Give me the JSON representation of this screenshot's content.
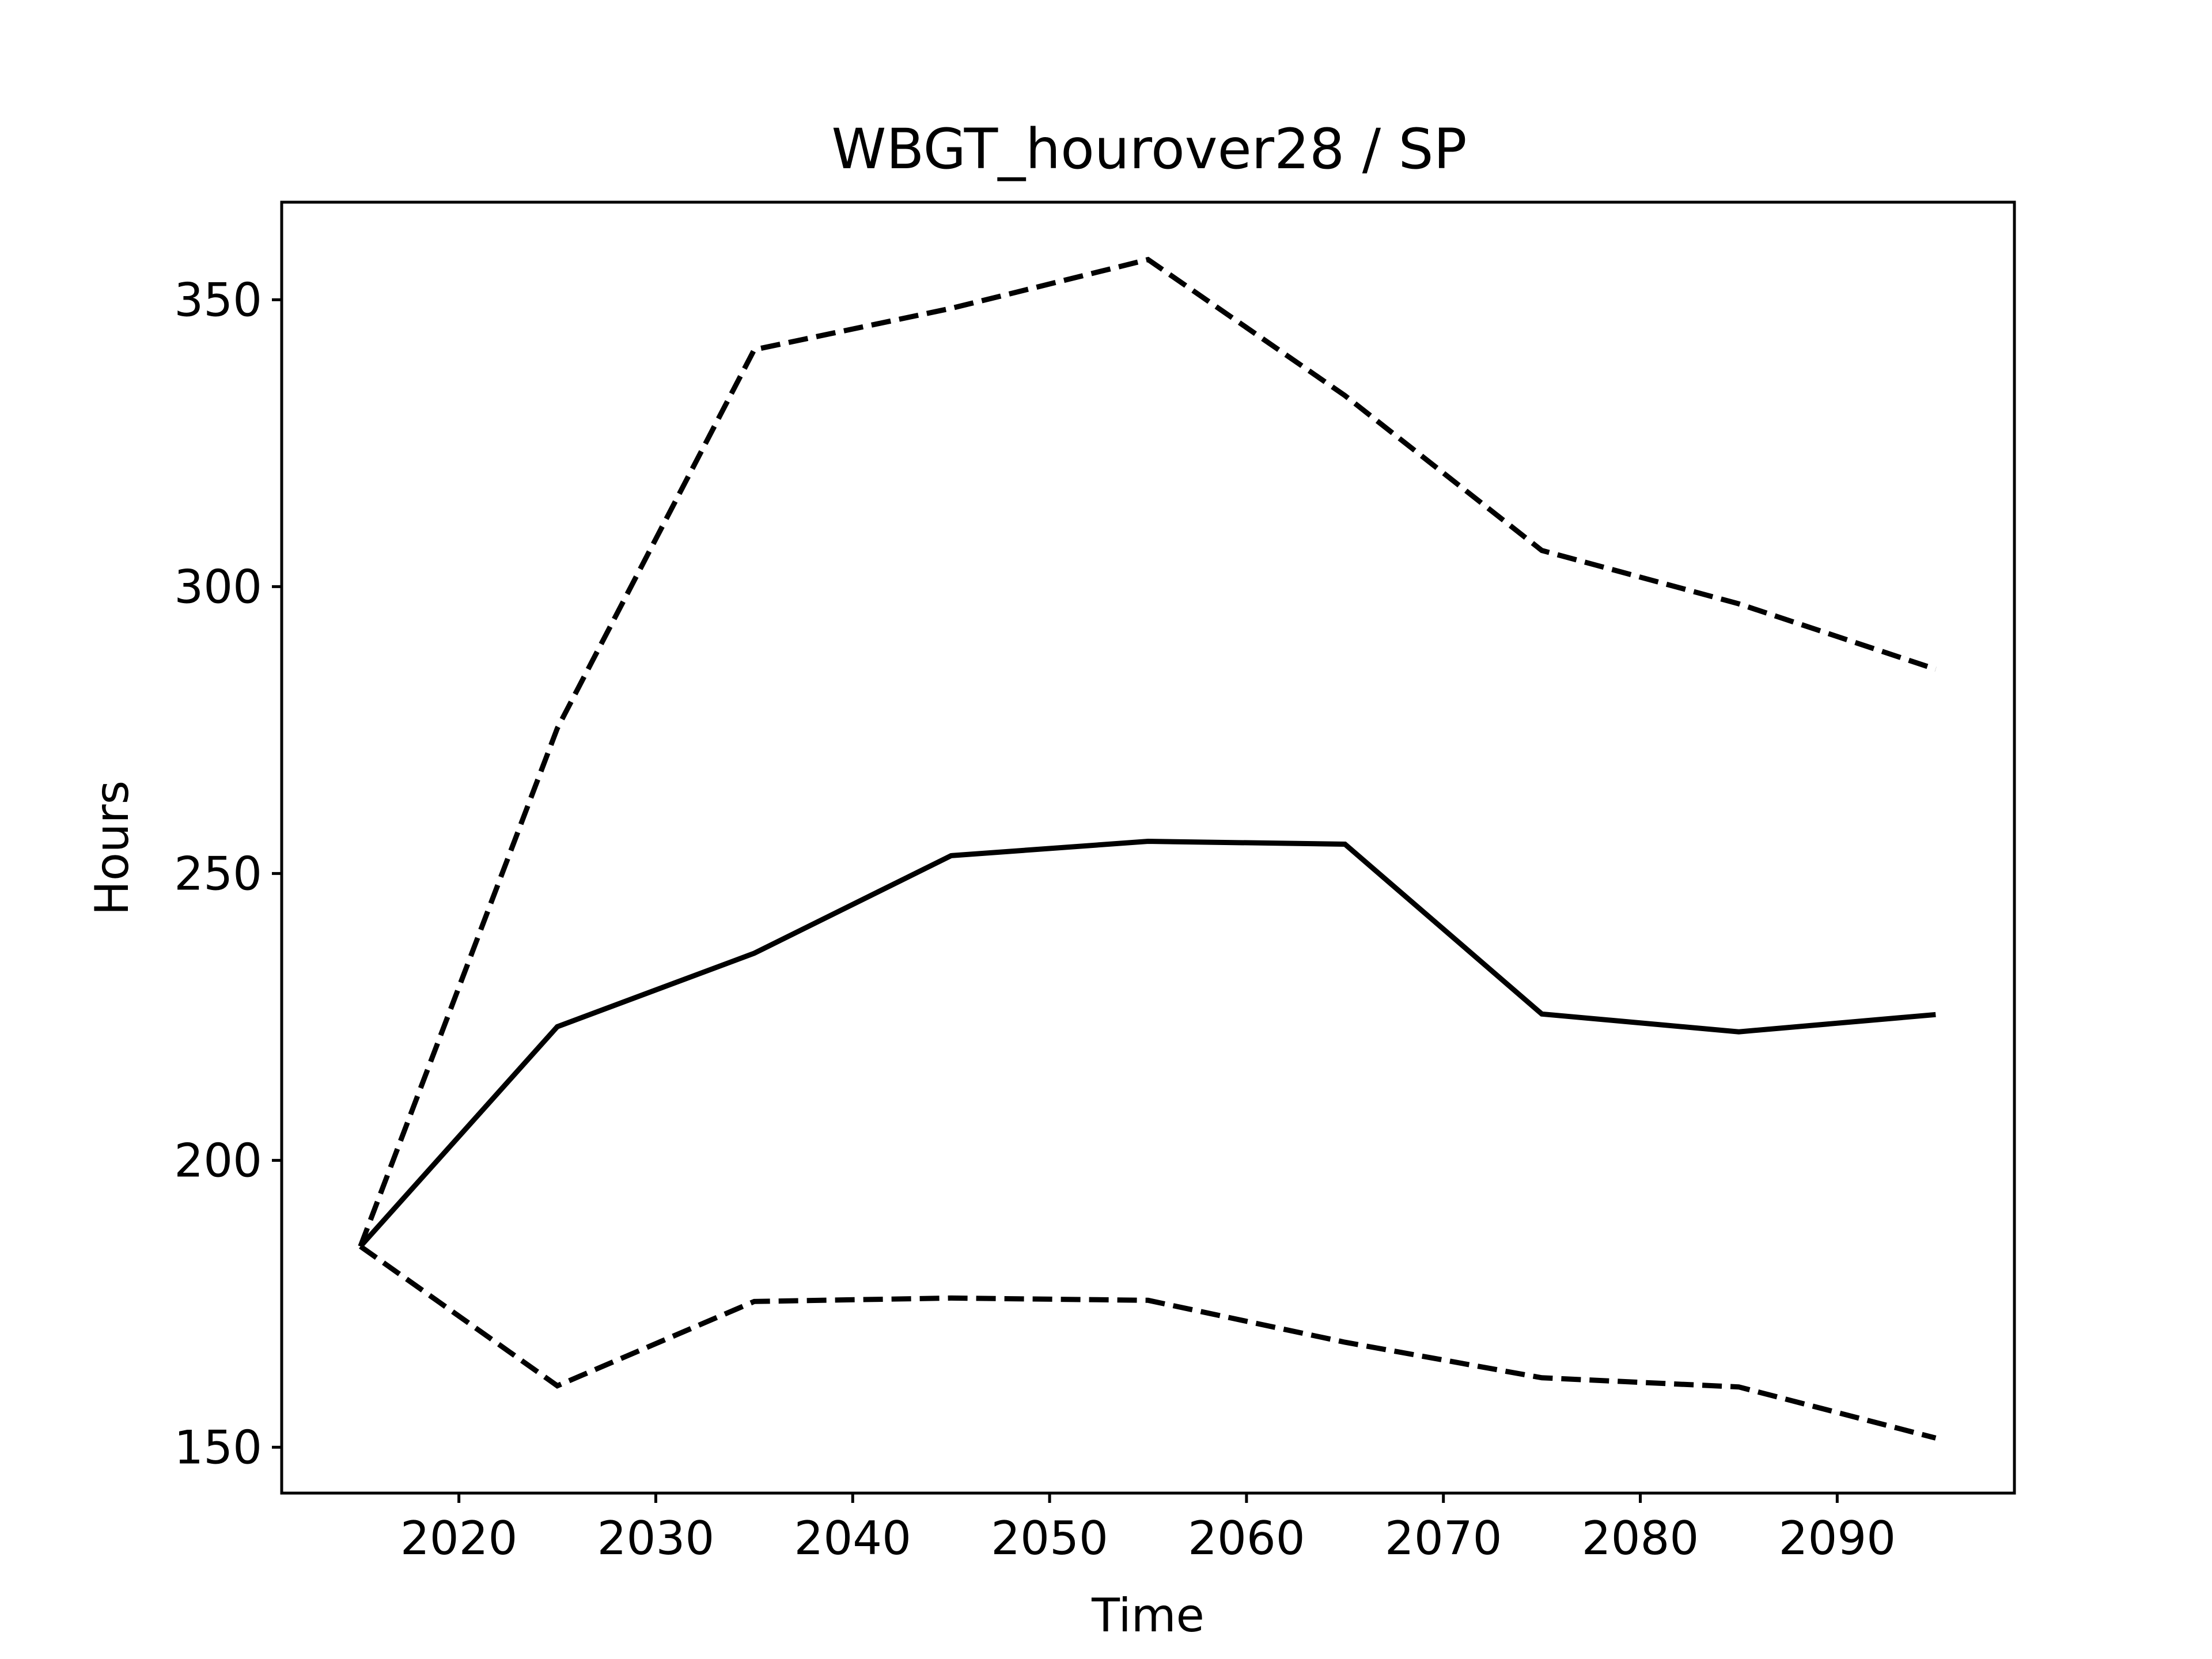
{
  "chart_data": {
    "type": "line",
    "title": "WBGT_hourover28 / SP",
    "xlabel": "Time",
    "ylabel": "Hours",
    "xlim": [
      2011,
      2099
    ],
    "ylim": [
      142,
      367
    ],
    "xticks": [
      2020,
      2030,
      2040,
      2050,
      2060,
      2070,
      2080,
      2090
    ],
    "yticks": [
      150,
      200,
      250,
      300,
      350
    ],
    "grid": false,
    "legend": false,
    "series": [
      {
        "style": "solid",
        "color": "#000000",
        "x": [
          2015,
          2025,
          2035,
          2045,
          2055,
          2065,
          2075,
          2085,
          2095
        ],
        "y": [
          185,
          223.3,
          236.1,
          253.1,
          255.6,
          255.1,
          225.5,
          222.4,
          225.4
        ]
      },
      {
        "style": "dashed",
        "color": "#000000",
        "x": [
          2015,
          2025,
          2035,
          2045,
          2055,
          2065,
          2075,
          2085,
          2095
        ],
        "y": [
          185,
          275.3,
          341.3,
          348.5,
          357.0,
          333.3,
          306.3,
          297.0,
          285.6
        ]
      },
      {
        "style": "dashed",
        "color": "#000000",
        "x": [
          2015,
          2025,
          2035,
          2045,
          2055,
          2065,
          2075,
          2085,
          2095
        ],
        "y": [
          185,
          160.7,
          175.4,
          176.0,
          175.6,
          168.3,
          162.1,
          160.5,
          151.6
        ]
      }
    ]
  }
}
